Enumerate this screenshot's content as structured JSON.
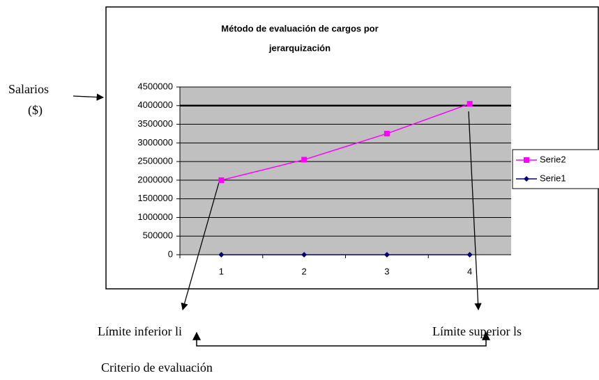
{
  "chart_data": {
    "type": "line",
    "title": [
      "Método de evaluación de cargos por",
      "jerarquización"
    ],
    "categories": [
      "1",
      "2",
      "3",
      "4"
    ],
    "series": [
      {
        "name": "Serie2",
        "color": "#ff00ff",
        "values": [
          2000000,
          2550000,
          3250000,
          4050000
        ]
      },
      {
        "name": "Serie1",
        "color": "#000080",
        "values": [
          0,
          0,
          0,
          0
        ]
      }
    ],
    "ylim": [
      0,
      4500000
    ],
    "yticks": [
      0,
      500000,
      1000000,
      1500000,
      2000000,
      2500000,
      3000000,
      3500000,
      4000000,
      4500000
    ],
    "grid": true,
    "legend": "right",
    "annotations": [
      "Salarios",
      "($)",
      "Límite inferior li",
      "Límite superior ls",
      "Criterio de evaluación"
    ]
  }
}
